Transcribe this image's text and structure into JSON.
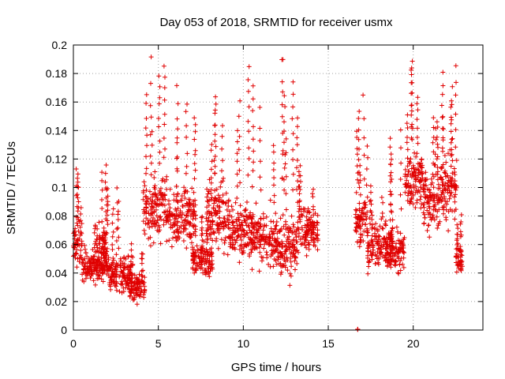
{
  "chart_data": {
    "type": "scatter",
    "title": "Day 053 of 2018, SRMTID for receiver usmx",
    "xlabel": "GPS time / hours",
    "ylabel": "SRMTID / TECUs",
    "xlim": [
      0,
      24.1
    ],
    "ylim": [
      0,
      0.2
    ],
    "xticks": [
      "0",
      "5",
      "10",
      "15",
      "20"
    ],
    "yticks": [
      "0",
      "0.02",
      "0.04",
      "0.06",
      "0.08",
      "0.1",
      "0.12",
      "0.14",
      "0.16",
      "0.18",
      "0.2"
    ],
    "grid": true,
    "marker": "+",
    "color": "#e00000",
    "series": [
      {
        "name": "SRMTID",
        "segments": [
          {
            "x_range": [
              0.0,
              0.5
            ],
            "baseline": 0.06,
            "spread": 0.02,
            "spikes": [
              0.115,
              0.11,
              0.1,
              0.085
            ]
          },
          {
            "x_range": [
              0.5,
              2.0
            ],
            "baseline": 0.045,
            "spread": 0.015,
            "spikes": [
              0.07,
              0.065,
              0.075
            ]
          },
          {
            "x_range": [
              1.5,
              2.0
            ],
            "baseline": 0.06,
            "spread": 0.02,
            "spikes": [
              0.115,
              0.11,
              0.1
            ]
          },
          {
            "x_range": [
              2.0,
              3.5
            ],
            "baseline": 0.04,
            "spread": 0.015,
            "spikes": [
              0.09,
              0.1,
              0.085
            ]
          },
          {
            "x_range": [
              3.3,
              4.2
            ],
            "baseline": 0.03,
            "spread": 0.012,
            "spikes": [
              0.06,
              0.055
            ]
          },
          {
            "x_range": [
              4.1,
              5.5
            ],
            "baseline": 0.085,
            "spread": 0.03,
            "spikes": [
              0.19,
              0.185,
              0.18,
              0.165,
              0.15
            ]
          },
          {
            "x_range": [
              5.5,
              7.2
            ],
            "baseline": 0.08,
            "spread": 0.025,
            "spikes": [
              0.17,
              0.16,
              0.15,
              0.14
            ]
          },
          {
            "x_range": [
              7.0,
              8.2
            ],
            "baseline": 0.05,
            "spread": 0.015,
            "spikes": [
              0.08,
              0.07
            ]
          },
          {
            "x_range": [
              7.8,
              9.2
            ],
            "baseline": 0.08,
            "spread": 0.03,
            "spikes": [
              0.165,
              0.16,
              0.145,
              0.13
            ]
          },
          {
            "x_range": [
              9.2,
              10.5
            ],
            "baseline": 0.07,
            "spread": 0.025,
            "spikes": [
              0.185,
              0.16,
              0.14
            ]
          },
          {
            "x_range": [
              10.5,
              12.0
            ],
            "baseline": 0.065,
            "spread": 0.025,
            "spikes": [
              0.17,
              0.155,
              0.13
            ]
          },
          {
            "x_range": [
              12.0,
              13.2
            ],
            "baseline": 0.06,
            "spread": 0.025,
            "spikes": [
              0.191,
              0.19,
              0.175,
              0.165,
              0.15,
              0.135
            ]
          },
          {
            "x_range": [
              13.2,
              14.4
            ],
            "baseline": 0.07,
            "spread": 0.02,
            "spikes": [
              0.115,
              0.11,
              0.1
            ]
          },
          {
            "x_range": [
              16.6,
              17.3
            ],
            "baseline": 0.075,
            "spread": 0.02,
            "spikes": [
              0.165,
              0.155,
              0.14,
              0.13,
              0.115
            ]
          },
          {
            "x_range": [
              17.3,
              18.8
            ],
            "baseline": 0.06,
            "spread": 0.02,
            "spikes": [
              0.1,
              0.095,
              0.09
            ]
          },
          {
            "x_range": [
              18.6,
              19.5
            ],
            "baseline": 0.055,
            "spread": 0.02,
            "spikes": [
              0.14,
              0.135,
              0.12
            ]
          },
          {
            "x_range": [
              19.5,
              20.6
            ],
            "baseline": 0.105,
            "spread": 0.025,
            "spikes": [
              0.19,
              0.185,
              0.165,
              0.15
            ]
          },
          {
            "x_range": [
              20.6,
              21.6
            ],
            "baseline": 0.09,
            "spread": 0.025,
            "spikes": [
              0.15,
              0.145,
              0.14
            ]
          },
          {
            "x_range": [
              21.6,
              22.6
            ],
            "baseline": 0.1,
            "spread": 0.03,
            "spikes": [
              0.185,
              0.18,
              0.17,
              0.16,
              0.15
            ]
          },
          {
            "x_range": [
              22.5,
              22.9
            ],
            "baseline": 0.05,
            "spread": 0.012,
            "spikes": [
              0.08,
              0.07
            ]
          }
        ],
        "outlier_points": [
          [
            16.75,
            0.0
          ]
        ],
        "point_count": 2200
      }
    ]
  }
}
